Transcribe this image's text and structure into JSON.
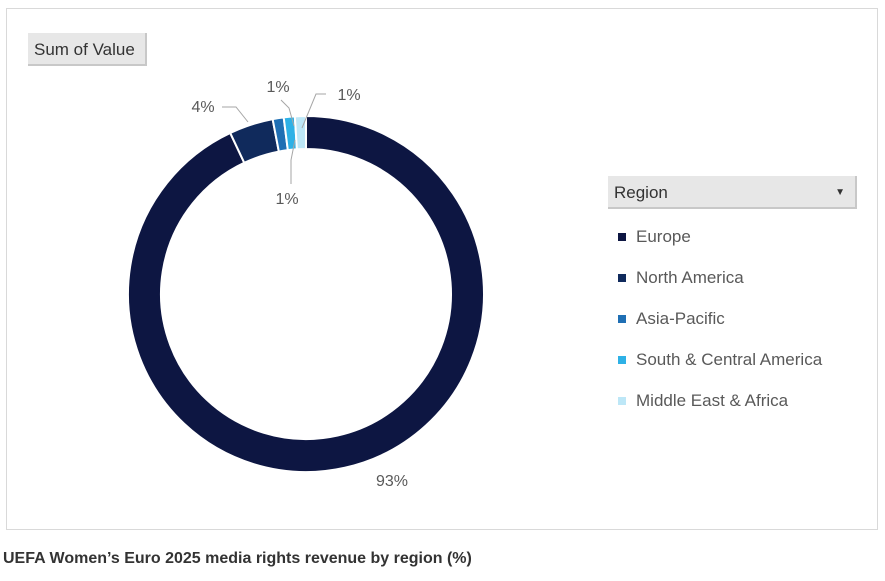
{
  "field_button": "Sum of Value",
  "legend_header": "Region",
  "caption": "UEFA Women’s Euro 2025 media rights revenue by region (%)",
  "chart_data": {
    "type": "pie",
    "variant": "donut",
    "title": "",
    "legend_title": "Region",
    "legend_position": "right",
    "categories": [
      "Europe",
      "North America",
      "Asia-Pacific",
      "South & Central America",
      "Middle East & Africa"
    ],
    "values": [
      93,
      4,
      1,
      1,
      1
    ],
    "data_labels": [
      "93%",
      "4%",
      "1%",
      "1%",
      "1%"
    ],
    "colors": [
      "#0d1642",
      "#102a5c",
      "#1f6fb4",
      "#2eb1e6",
      "#bde7f7"
    ]
  }
}
